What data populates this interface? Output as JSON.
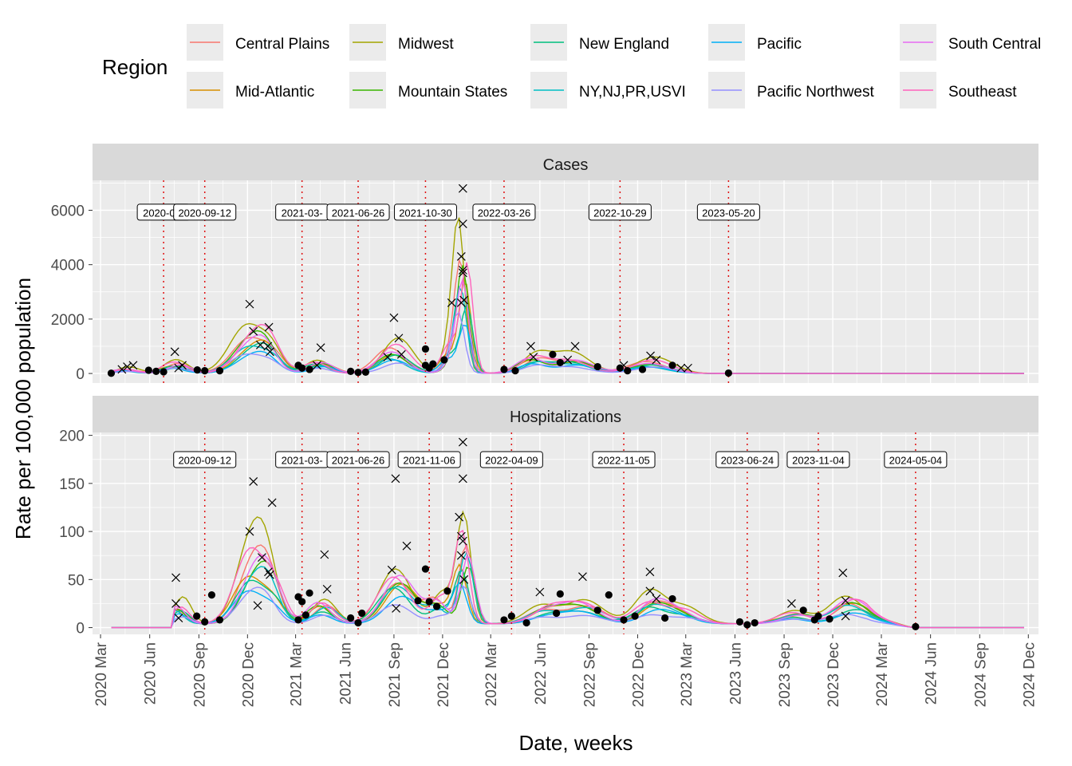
{
  "legend": {
    "title": "Region",
    "items": [
      {
        "name": "Central Plains",
        "color": "#F8766D"
      },
      {
        "name": "Mid-Atlantic",
        "color": "#D89000"
      },
      {
        "name": "Midwest",
        "color": "#A3A500"
      },
      {
        "name": "Mountain States",
        "color": "#39B600"
      },
      {
        "name": "New England",
        "color": "#00BF7D"
      },
      {
        "name": "NY,NJ,PR,USVI",
        "color": "#00BFC4"
      },
      {
        "name": "Pacific",
        "color": "#00B0F6"
      },
      {
        "name": "Pacific Northwest",
        "color": "#9590FF"
      },
      {
        "name": "South Central",
        "color": "#E76BF3"
      },
      {
        "name": "Southeast",
        "color": "#FF62BC"
      }
    ]
  },
  "chart_data": {
    "type": "line",
    "xlabel": "Date, weeks",
    "ylabel": "Rate per 100,000 population",
    "x_ticks": [
      "2020 Mar",
      "2020 Jun",
      "2020 Sep",
      "2020 Dec",
      "2021 Mar",
      "2021 Jun",
      "2021 Sep",
      "2021 Dec",
      "2022 Mar",
      "2022 Jun",
      "2022 Sep",
      "2022 Dec",
      "2023 Mar",
      "2023 Jun",
      "2023 Sep",
      "2023 Dec",
      "2024 Mar",
      "2024 Jun",
      "2024 Sep",
      "2024 Dec"
    ],
    "xlim": [
      "2020-02-15",
      "2024-12-20"
    ],
    "panels": [
      {
        "title": "Cases",
        "ylim": [
          -350,
          7100
        ],
        "y_ticks": [
          0,
          2000,
          4000,
          6000
        ],
        "data_end": "2023-05-20",
        "flat_until": "2024-11-23",
        "wave_dates": [
          "2020-06-27",
          "2020-09-12",
          "2021-03-13",
          "2021-06-26",
          "2021-10-30",
          "2022-03-26",
          "2022-10-29",
          "2023-05-20"
        ],
        "wave_labels": [
          "2020-06-",
          "2020-09-12",
          "2021-03-",
          "2021-06-26",
          "2021-10-30",
          "2022-03-26",
          "2022-10-29",
          "2023-05-20"
        ],
        "series": [
          {
            "name": "Central Plains",
            "peak_scale": 1.0
          },
          {
            "name": "Mid-Atlantic",
            "peak_scale": 0.85
          },
          {
            "name": "Midwest",
            "peak_scale": 1.2
          },
          {
            "name": "Mountain States",
            "peak_scale": 0.9
          },
          {
            "name": "New England",
            "peak_scale": 0.8
          },
          {
            "name": "NY,NJ,PR,USVI",
            "peak_scale": 0.75
          },
          {
            "name": "Pacific",
            "peak_scale": 0.6
          },
          {
            "name": "Pacific Northwest",
            "peak_scale": 0.55
          },
          {
            "name": "South Central",
            "peak_scale": 0.95
          },
          {
            "name": "Southeast",
            "peak_scale": 1.1
          }
        ],
        "peak_markers": [
          {
            "x": "2020-04-10",
            "y": 150
          },
          {
            "x": "2020-04-20",
            "y": 250
          },
          {
            "x": "2020-05-01",
            "y": 300
          },
          {
            "x": "2020-07-18",
            "y": 800
          },
          {
            "x": "2020-07-25",
            "y": 200
          },
          {
            "x": "2020-08-01",
            "y": 300
          },
          {
            "x": "2020-12-05",
            "y": 2550
          },
          {
            "x": "2020-12-12",
            "y": 1550
          },
          {
            "x": "2020-12-25",
            "y": 1050
          },
          {
            "x": "2021-01-10",
            "y": 1700
          },
          {
            "x": "2021-01-12",
            "y": 800
          },
          {
            "x": "2021-01-08",
            "y": 1000
          },
          {
            "x": "2021-04-17",
            "y": 950
          },
          {
            "x": "2021-04-10",
            "y": 300
          },
          {
            "x": "2021-09-01",
            "y": 2050
          },
          {
            "x": "2021-09-10",
            "y": 1300
          },
          {
            "x": "2021-09-15",
            "y": 700
          },
          {
            "x": "2021-08-20",
            "y": 600
          },
          {
            "x": "2021-12-18",
            "y": 2600
          },
          {
            "x": "2022-01-08",
            "y": 6800
          },
          {
            "x": "2022-01-08",
            "y": 5500
          },
          {
            "x": "2022-01-05",
            "y": 4300
          },
          {
            "x": "2022-01-08",
            "y": 3800
          },
          {
            "x": "2022-01-08",
            "y": 3700
          },
          {
            "x": "2022-01-10",
            "y": 2700
          },
          {
            "x": "2022-01-05",
            "y": 2600
          },
          {
            "x": "2022-05-15",
            "y": 1000
          },
          {
            "x": "2022-05-20",
            "y": 600
          },
          {
            "x": "2022-08-06",
            "y": 1000
          },
          {
            "x": "2022-07-23",
            "y": 500
          },
          {
            "x": "2022-11-05",
            "y": 300
          },
          {
            "x": "2022-12-25",
            "y": 650
          },
          {
            "x": "2023-01-05",
            "y": 500
          },
          {
            "x": "2023-02-20",
            "y": 200
          },
          {
            "x": "2023-03-05",
            "y": 200
          }
        ],
        "trough_markers": [
          {
            "x": "2020-03-21",
            "y": 10
          },
          {
            "x": "2020-05-30",
            "y": 120
          },
          {
            "x": "2020-06-13",
            "y": 80
          },
          {
            "x": "2020-06-27",
            "y": 60
          },
          {
            "x": "2020-08-29",
            "y": 130
          },
          {
            "x": "2020-09-12",
            "y": 100
          },
          {
            "x": "2020-10-10",
            "y": 100
          },
          {
            "x": "2021-03-06",
            "y": 300
          },
          {
            "x": "2021-03-13",
            "y": 200
          },
          {
            "x": "2021-03-27",
            "y": 150
          },
          {
            "x": "2021-06-12",
            "y": 80
          },
          {
            "x": "2021-06-26",
            "y": 40
          },
          {
            "x": "2021-07-10",
            "y": 50
          },
          {
            "x": "2021-10-30",
            "y": 900
          },
          {
            "x": "2021-10-30",
            "y": 300
          },
          {
            "x": "2021-11-13",
            "y": 350
          },
          {
            "x": "2021-11-06",
            "y": 200
          },
          {
            "x": "2021-12-04",
            "y": 500
          },
          {
            "x": "2022-03-26",
            "y": 150
          },
          {
            "x": "2022-04-16",
            "y": 100
          },
          {
            "x": "2022-06-25",
            "y": 700
          },
          {
            "x": "2022-07-09",
            "y": 400
          },
          {
            "x": "2022-09-17",
            "y": 250
          },
          {
            "x": "2022-10-29",
            "y": 200
          },
          {
            "x": "2022-11-12",
            "y": 100
          },
          {
            "x": "2022-12-10",
            "y": 150
          },
          {
            "x": "2023-02-04",
            "y": 300
          },
          {
            "x": "2023-05-20",
            "y": 15
          }
        ]
      },
      {
        "title": "Hospitalizations",
        "ylim": [
          -7,
          203
        ],
        "y_ticks": [
          0,
          50,
          100,
          150,
          200
        ],
        "data_end": "2024-05-04",
        "flat_until": "2024-11-23",
        "wave_dates": [
          "2020-09-12",
          "2021-03-13",
          "2021-06-26",
          "2021-11-06",
          "2022-04-09",
          "2022-11-05",
          "2023-06-24",
          "2023-11-04",
          "2024-05-04"
        ],
        "wave_labels": [
          "2020-09-12",
          "2021-03-",
          "2021-06-26",
          "2021-11-06",
          "2022-04-09",
          "2022-11-05",
          "2023-06-24",
          "2023-11-04",
          "2024-05-04"
        ],
        "peak_markers": [
          {
            "x": "2020-07-20",
            "y": 52
          },
          {
            "x": "2020-07-20",
            "y": 25
          },
          {
            "x": "2020-07-25",
            "y": 10
          },
          {
            "x": "2020-12-05",
            "y": 100
          },
          {
            "x": "2020-12-12",
            "y": 152
          },
          {
            "x": "2020-12-28",
            "y": 73
          },
          {
            "x": "2021-01-16",
            "y": 130
          },
          {
            "x": "2021-01-12",
            "y": 55
          },
          {
            "x": "2021-01-09",
            "y": 58
          },
          {
            "x": "2020-12-20",
            "y": 23
          },
          {
            "x": "2021-04-24",
            "y": 76
          },
          {
            "x": "2021-04-29",
            "y": 40
          },
          {
            "x": "2021-09-04",
            "y": 155
          },
          {
            "x": "2021-08-28",
            "y": 60
          },
          {
            "x": "2021-09-25",
            "y": 85
          },
          {
            "x": "2021-09-05",
            "y": 20
          },
          {
            "x": "2022-01-08",
            "y": 193
          },
          {
            "x": "2022-01-08",
            "y": 155
          },
          {
            "x": "2022-01-01",
            "y": 115
          },
          {
            "x": "2022-01-05",
            "y": 95
          },
          {
            "x": "2022-01-08",
            "y": 90
          },
          {
            "x": "2022-01-05",
            "y": 75
          },
          {
            "x": "2022-01-10",
            "y": 50
          },
          {
            "x": "2022-06-01",
            "y": 37
          },
          {
            "x": "2022-08-20",
            "y": 53
          },
          {
            "x": "2022-12-24",
            "y": 58
          },
          {
            "x": "2022-12-24",
            "y": 38
          },
          {
            "x": "2023-01-05",
            "y": 30
          },
          {
            "x": "2023-09-15",
            "y": 25
          },
          {
            "x": "2023-12-20",
            "y": 57
          },
          {
            "x": "2023-12-25",
            "y": 28
          },
          {
            "x": "2023-12-25",
            "y": 12
          }
        ],
        "trough_markers": [
          {
            "x": "2020-08-28",
            "y": 12
          },
          {
            "x": "2020-09-12",
            "y": 6
          },
          {
            "x": "2020-09-25",
            "y": 34
          },
          {
            "x": "2020-10-10",
            "y": 8
          },
          {
            "x": "2021-03-06",
            "y": 32
          },
          {
            "x": "2021-03-13",
            "y": 27
          },
          {
            "x": "2021-03-27",
            "y": 36
          },
          {
            "x": "2021-03-20",
            "y": 13
          },
          {
            "x": "2021-03-06",
            "y": 8
          },
          {
            "x": "2021-06-12",
            "y": 10
          },
          {
            "x": "2021-06-26",
            "y": 5
          },
          {
            "x": "2021-07-03",
            "y": 15
          },
          {
            "x": "2021-10-16",
            "y": 28
          },
          {
            "x": "2021-10-30",
            "y": 61
          },
          {
            "x": "2021-11-06",
            "y": 27
          },
          {
            "x": "2021-11-20",
            "y": 22
          },
          {
            "x": "2021-12-10",
            "y": 38
          },
          {
            "x": "2022-03-26",
            "y": 8
          },
          {
            "x": "2022-04-09",
            "y": 12
          },
          {
            "x": "2022-05-07",
            "y": 5
          },
          {
            "x": "2022-07-09",
            "y": 35
          },
          {
            "x": "2022-07-02",
            "y": 15
          },
          {
            "x": "2022-09-17",
            "y": 18
          },
          {
            "x": "2022-10-08",
            "y": 34
          },
          {
            "x": "2022-11-05",
            "y": 8
          },
          {
            "x": "2022-11-26",
            "y": 12
          },
          {
            "x": "2023-02-04",
            "y": 30
          },
          {
            "x": "2023-01-21",
            "y": 10
          },
          {
            "x": "2023-06-10",
            "y": 6
          },
          {
            "x": "2023-06-24",
            "y": 3
          },
          {
            "x": "2023-07-08",
            "y": 5
          },
          {
            "x": "2023-10-07",
            "y": 18
          },
          {
            "x": "2023-10-28",
            "y": 8
          },
          {
            "x": "2023-11-04",
            "y": 12
          },
          {
            "x": "2023-11-25",
            "y": 9
          },
          {
            "x": "2024-05-04",
            "y": 1
          }
        ]
      }
    ]
  }
}
